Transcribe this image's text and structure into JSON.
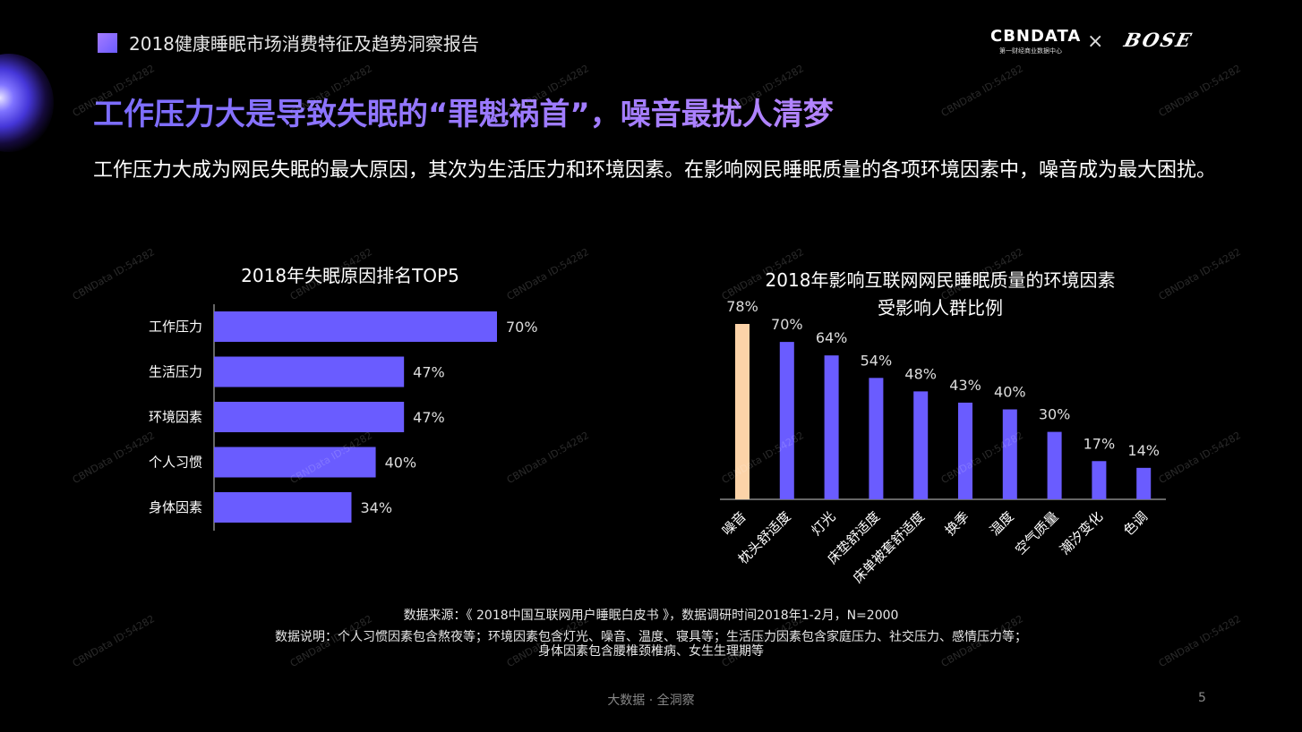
{
  "header": {
    "report_title": "2018健康睡眠市场消费特征及趋势洞察报告",
    "logo_cbn": "CBNDATA",
    "logo_cbn_sub": "第一财经商业数据中心",
    "logo_separator": "×",
    "logo_bose": "BOSE"
  },
  "headline": "工作压力大是导致失眠的“罪魁祸首”，噪音最扰人清梦",
  "summary": "工作压力大成为网民失眠的最大原因，其次为生活压力和环境因素。在影响网民睡眠质量的各项环境因素中，噪音成为最大困扰。",
  "watermark": "CBNData ID:54282",
  "chart_data": [
    {
      "type": "bar",
      "orientation": "horizontal",
      "title": "2018年失眠原因排名TOP5",
      "categories": [
        "工作压力",
        "生活压力",
        "环境因素",
        "个人习惯",
        "身体因素"
      ],
      "values": [
        70,
        47,
        47,
        40,
        34
      ],
      "labels": [
        "70%",
        "47%",
        "47%",
        "40%",
        "34%"
      ],
      "xlim": [
        0,
        100
      ],
      "color": "#6a5cff"
    },
    {
      "type": "bar",
      "orientation": "vertical",
      "title_lines": [
        "2018年影响互联网网民睡眠质量的环境因素",
        "受影响人群比例"
      ],
      "categories": [
        "噪音",
        "枕头舒适度",
        "灯光",
        "床垫舒适度",
        "床单被套舒适度",
        "换季",
        "温度",
        "空气质量",
        "潮汐变化",
        "色调"
      ],
      "values": [
        78,
        70,
        64,
        54,
        48,
        43,
        40,
        30,
        17,
        14
      ],
      "labels": [
        "78%",
        "70%",
        "64%",
        "54%",
        "48%",
        "43%",
        "40%",
        "30%",
        "17%",
        "14%"
      ],
      "ylim": [
        0,
        100
      ],
      "color": "#6a5cff",
      "highlight_color": "#fcd3a8",
      "highlight_index": 0
    }
  ],
  "source": {
    "line1": "数据来源：《 2018中国互联网用户睡眠白皮书 》，数据调研时间2018年1-2月，N=2000",
    "line2": "数据说明：个人习惯因素包含熬夜等；环境因素包含灯光、噪音、温度、寝具等；生活压力因素包含家庭压力、社交压力、感情压力等；",
    "line3": "身体因素包含腰椎颈椎病、女生生理期等"
  },
  "footer": {
    "center": "大数据 · 全洞察",
    "page_number": "5"
  }
}
